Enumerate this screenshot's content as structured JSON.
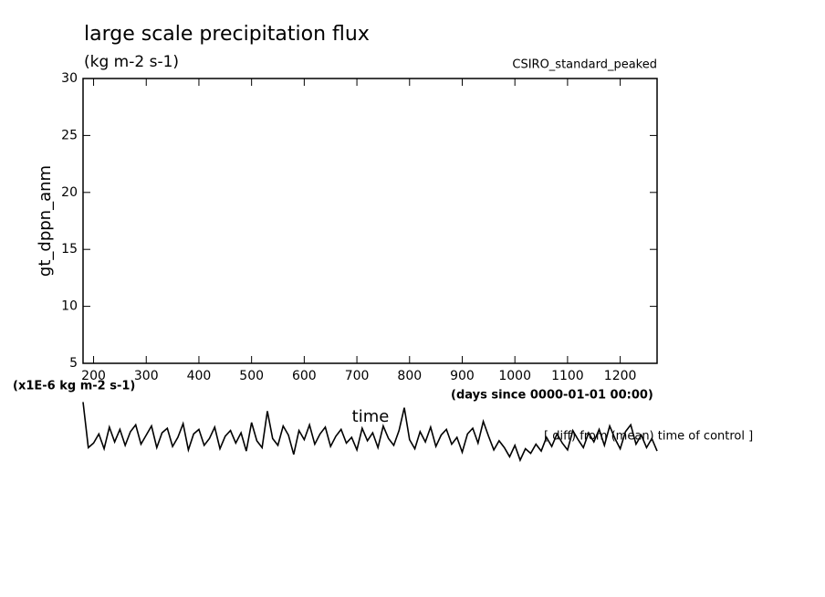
{
  "chart_data": {
    "type": "line",
    "title": "large scale precipitation flux",
    "subtitle": "(kg m-2 s-1)",
    "experiment": "CSIRO_standard_peaked",
    "y_label": "gt_dppn_anm",
    "y_unit_note": "(x1E-6 kg m-2 s-1)",
    "x_label": "time",
    "x_unit": "(days since 0000-01-01 00:00)",
    "annotation": "[ diff) from (mean) time of control ]",
    "xlim": [
      180,
      1270
    ],
    "xticks": [
      200,
      300,
      400,
      500,
      600,
      700,
      800,
      900,
      1000,
      1100,
      1200
    ],
    "ylim": [
      5,
      30
    ],
    "yticks": [
      5,
      10,
      15,
      20,
      25,
      30
    ],
    "x": [
      180,
      190,
      200,
      210,
      220,
      230,
      240,
      250,
      260,
      270,
      280,
      290,
      300,
      310,
      320,
      330,
      340,
      350,
      360,
      370,
      380,
      390,
      400,
      410,
      420,
      430,
      440,
      450,
      460,
      470,
      480,
      490,
      500,
      510,
      520,
      530,
      540,
      550,
      560,
      570,
      580,
      590,
      600,
      610,
      620,
      630,
      640,
      650,
      660,
      670,
      680,
      690,
      700,
      710,
      720,
      730,
      740,
      750,
      760,
      770,
      780,
      790,
      800,
      810,
      820,
      830,
      840,
      850,
      860,
      870,
      880,
      890,
      900,
      910,
      920,
      930,
      940,
      950,
      960,
      970,
      980,
      990,
      1000,
      1010,
      1020,
      1030,
      1040,
      1050,
      1060,
      1070,
      1080,
      1090,
      1100,
      1110,
      1120,
      1130,
      1140,
      1150,
      1160,
      1170,
      1180,
      1190,
      1200,
      1210,
      1220,
      1230,
      1240,
      1250,
      1260,
      1270
    ],
    "series": [
      {
        "color": "#000000",
        "values": [
          1.6,
          -2.4,
          -2.0,
          -1.2,
          -2.5,
          -0.6,
          -1.9,
          -0.8,
          -2.2,
          -1.0,
          -0.4,
          -2.1,
          -1.3,
          -0.5,
          -2.4,
          -1.1,
          -0.7,
          -2.3,
          -1.5,
          -0.3,
          -2.6,
          -1.2,
          -0.8,
          -2.2,
          -1.6,
          -0.6,
          -2.5,
          -1.4,
          -0.9,
          -2.0,
          -1.1,
          -2.7,
          -0.2,
          -1.8,
          -2.4,
          0.8,
          -1.6,
          -2.2,
          -0.5,
          -1.3,
          -3.0,
          -0.9,
          -1.7,
          -0.4,
          -2.1,
          -1.2,
          -0.6,
          -2.3,
          -1.4,
          -0.8,
          -2.0,
          -1.5,
          -2.6,
          -0.7,
          -1.8,
          -1.1,
          -2.4,
          -0.5,
          -1.6,
          -2.2,
          -0.9,
          1.1,
          -1.7,
          -2.5,
          -1.0,
          -1.9,
          -0.6,
          -2.3,
          -1.3,
          -0.8,
          -2.1,
          -1.5,
          -2.8,
          -1.2,
          -0.7,
          -2.0,
          -0.1,
          -1.4,
          -2.6,
          -1.8,
          -2.4,
          -3.2,
          -2.2,
          -3.5,
          -2.5,
          -2.9,
          -2.1,
          -2.7,
          -1.5,
          -2.3,
          -1.2,
          -2.0,
          -2.6,
          -0.9,
          -1.7,
          -2.4,
          -1.1,
          -1.9,
          -0.8,
          -2.2,
          -0.5,
          -1.6,
          -2.5,
          -1.0,
          -0.4,
          -2.1,
          -1.3,
          -2.4,
          -1.6,
          -2.7
        ]
      }
    ]
  }
}
